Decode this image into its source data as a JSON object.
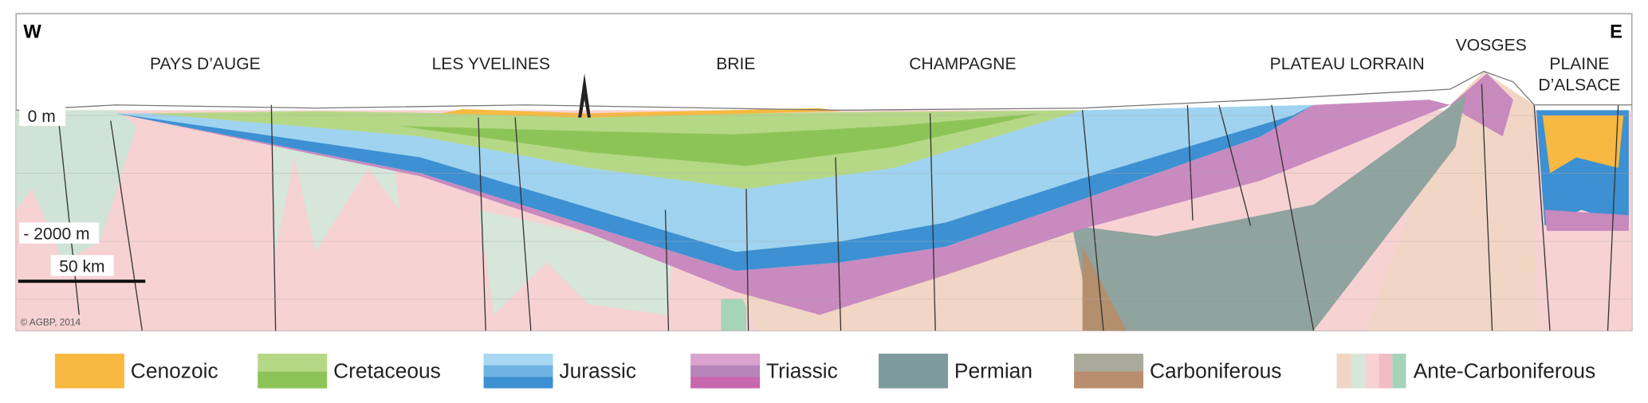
{
  "header": {
    "west": "W",
    "east": "E"
  },
  "regions": [
    "PAYS D’AUGE",
    "LES YVELINES",
    "BRIE",
    "CHAMPAGNE",
    "PLATEAU LORRAIN",
    "VOSGES"
  ],
  "plaine_alsace": [
    "PLAINE",
    "D’ALSACE"
  ],
  "depths": [
    "0 m",
    "- 2000 m"
  ],
  "scale": "50 km",
  "credit": "© AGBP, 2014",
  "legend": [
    "Cenozoic",
    "Cretaceous",
    "Jurassic",
    "Triassic",
    "Permian",
    "Carboniferous",
    "Ante-Carboniferous"
  ]
}
